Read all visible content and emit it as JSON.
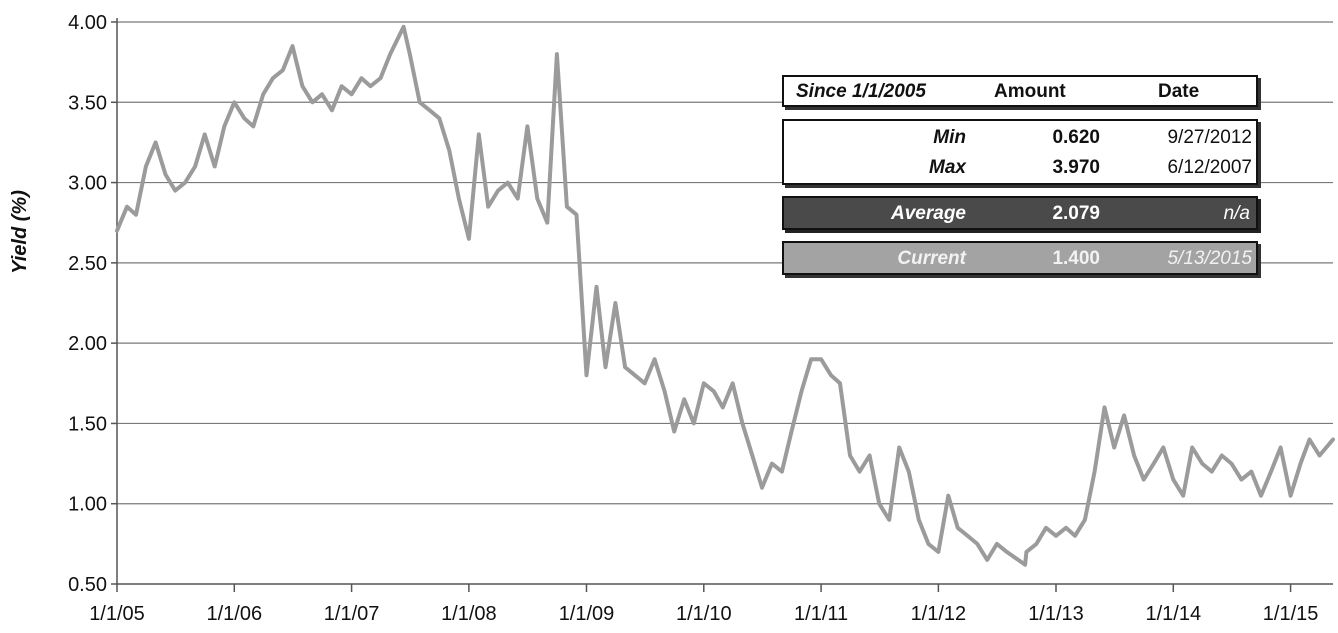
{
  "chart_data": {
    "type": "line",
    "title": "",
    "xlabel": "",
    "ylabel": "Yield (%)",
    "ylim": [
      0.5,
      4.0
    ],
    "xlim": [
      "2005-01-01",
      "2015-05-13"
    ],
    "y_ticks": [
      "0.50",
      "1.00",
      "1.50",
      "2.00",
      "2.50",
      "3.00",
      "3.50",
      "4.00"
    ],
    "x_ticks": [
      "1/1/05",
      "1/1/06",
      "1/1/07",
      "1/1/08",
      "1/1/09",
      "1/1/10",
      "1/1/11",
      "1/1/12",
      "1/1/13",
      "1/1/14",
      "1/1/15"
    ],
    "x_tick_dates": [
      "2005-01-01",
      "2006-01-01",
      "2007-01-01",
      "2008-01-01",
      "2009-01-01",
      "2010-01-01",
      "2011-01-01",
      "2012-01-01",
      "2013-01-01",
      "2014-01-01",
      "2015-01-01"
    ],
    "grid": true,
    "series_color": "#9b9b9b",
    "series": [
      {
        "x": [
          "2005-01-01",
          "2005-02-01",
          "2005-03-01",
          "2005-04-01",
          "2005-05-01",
          "2005-06-01",
          "2005-07-01",
          "2005-08-01",
          "2005-09-01",
          "2005-10-01",
          "2005-11-01",
          "2005-12-01",
          "2006-01-01",
          "2006-02-01",
          "2006-03-01",
          "2006-04-01",
          "2006-05-01",
          "2006-06-01",
          "2006-07-01",
          "2006-08-01",
          "2006-09-01",
          "2006-10-01",
          "2006-11-01",
          "2006-12-01",
          "2007-01-01",
          "2007-02-01",
          "2007-03-01",
          "2007-04-01",
          "2007-05-01",
          "2007-06-12",
          "2007-07-01",
          "2007-08-01",
          "2007-09-01",
          "2007-10-01",
          "2007-11-01",
          "2007-12-01",
          "2008-01-01",
          "2008-02-01",
          "2008-03-01",
          "2008-04-01",
          "2008-05-01",
          "2008-06-01",
          "2008-07-01",
          "2008-08-01",
          "2008-09-01",
          "2008-10-01",
          "2008-11-01",
          "2008-12-01",
          "2009-01-01",
          "2009-02-01",
          "2009-03-01",
          "2009-04-01",
          "2009-05-01",
          "2009-06-01",
          "2009-07-01",
          "2009-08-01",
          "2009-09-01",
          "2009-10-01",
          "2009-11-01",
          "2009-12-01",
          "2010-01-01",
          "2010-02-01",
          "2010-03-01",
          "2010-04-01",
          "2010-05-01",
          "2010-06-01",
          "2010-07-01",
          "2010-08-01",
          "2010-09-01",
          "2010-10-01",
          "2010-11-01",
          "2010-12-01",
          "2011-01-01",
          "2011-02-01",
          "2011-03-01",
          "2011-04-01",
          "2011-05-01",
          "2011-06-01",
          "2011-07-01",
          "2011-08-01",
          "2011-09-01",
          "2011-10-01",
          "2011-11-01",
          "2011-12-01",
          "2012-01-01",
          "2012-02-01",
          "2012-03-01",
          "2012-04-01",
          "2012-05-01",
          "2012-06-01",
          "2012-07-01",
          "2012-08-01",
          "2012-09-27",
          "2012-10-01",
          "2012-11-01",
          "2012-12-01",
          "2013-01-01",
          "2013-02-01",
          "2013-03-01",
          "2013-04-01",
          "2013-05-01",
          "2013-06-01",
          "2013-07-01",
          "2013-08-01",
          "2013-09-01",
          "2013-10-01",
          "2013-11-01",
          "2013-12-01",
          "2014-01-01",
          "2014-02-01",
          "2014-03-01",
          "2014-04-01",
          "2014-05-01",
          "2014-06-01",
          "2014-07-01",
          "2014-08-01",
          "2014-09-01",
          "2014-10-01",
          "2014-11-01",
          "2014-12-01",
          "2015-01-01",
          "2015-02-01",
          "2015-03-01",
          "2015-04-01",
          "2015-05-13"
        ],
        "values": [
          2.7,
          2.85,
          2.8,
          3.1,
          3.25,
          3.05,
          2.95,
          3.0,
          3.1,
          3.3,
          3.1,
          3.35,
          3.5,
          3.4,
          3.35,
          3.55,
          3.65,
          3.7,
          3.85,
          3.6,
          3.5,
          3.55,
          3.45,
          3.6,
          3.55,
          3.65,
          3.6,
          3.65,
          3.8,
          3.97,
          3.8,
          3.5,
          3.45,
          3.4,
          3.2,
          2.9,
          2.65,
          3.3,
          2.85,
          2.95,
          3.0,
          2.9,
          3.35,
          2.9,
          2.75,
          3.8,
          2.85,
          2.8,
          1.8,
          2.35,
          1.85,
          2.25,
          1.85,
          1.8,
          1.75,
          1.9,
          1.7,
          1.45,
          1.65,
          1.5,
          1.75,
          1.7,
          1.6,
          1.75,
          1.5,
          1.3,
          1.1,
          1.25,
          1.2,
          1.45,
          1.7,
          1.9,
          1.9,
          1.8,
          1.75,
          1.3,
          1.2,
          1.3,
          1.0,
          0.9,
          1.35,
          1.2,
          0.9,
          0.75,
          0.7,
          1.05,
          0.85,
          0.8,
          0.75,
          0.65,
          0.75,
          0.7,
          0.62,
          0.7,
          0.75,
          0.85,
          0.8,
          0.85,
          0.8,
          0.9,
          1.2,
          1.6,
          1.35,
          1.55,
          1.3,
          1.15,
          1.25,
          1.35,
          1.15,
          1.05,
          1.35,
          1.25,
          1.2,
          1.3,
          1.25,
          1.15,
          1.2,
          1.05,
          1.2,
          1.35,
          1.05,
          1.25,
          1.4,
          1.3,
          1.4
        ]
      }
    ],
    "summary_table": {
      "header": [
        "Since 1/1/2005",
        "Amount",
        "Date"
      ],
      "rows": [
        {
          "label": "Min",
          "amount": "0.620",
          "date": "9/27/2012"
        },
        {
          "label": "Max",
          "amount": "3.970",
          "date": "6/12/2007"
        },
        {
          "label": "Average",
          "amount": "2.079",
          "date": "n/a"
        },
        {
          "label": "Current",
          "amount": "1.400",
          "date": "5/13/2015"
        }
      ]
    }
  }
}
